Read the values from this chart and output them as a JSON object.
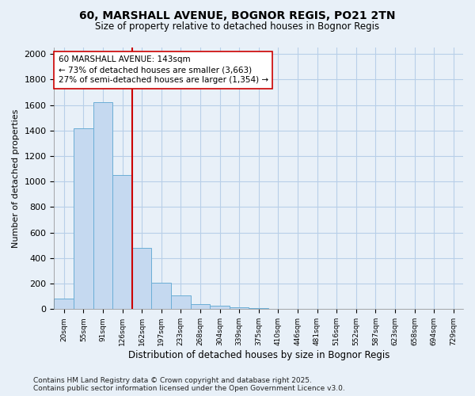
{
  "title_line1": "60, MARSHALL AVENUE, BOGNOR REGIS, PO21 2TN",
  "title_line2": "Size of property relative to detached houses in Bognor Regis",
  "xlabel": "Distribution of detached houses by size in Bognor Regis",
  "ylabel": "Number of detached properties",
  "categories": [
    "20sqm",
    "55sqm",
    "91sqm",
    "126sqm",
    "162sqm",
    "197sqm",
    "233sqm",
    "268sqm",
    "304sqm",
    "339sqm",
    "375sqm",
    "410sqm",
    "446sqm",
    "481sqm",
    "516sqm",
    "552sqm",
    "587sqm",
    "623sqm",
    "658sqm",
    "694sqm",
    "729sqm"
  ],
  "values": [
    80,
    1420,
    1620,
    1050,
    480,
    205,
    110,
    40,
    25,
    15,
    10,
    0,
    0,
    0,
    0,
    0,
    0,
    0,
    0,
    0,
    0
  ],
  "bar_color": "#c5d9f0",
  "bar_edge_color": "#6baed6",
  "grid_color": "#b8cfe8",
  "background_color": "#e8f0f8",
  "vline_x": 3.5,
  "vline_color": "#cc0000",
  "annotation_text": "60 MARSHALL AVENUE: 143sqm\n← 73% of detached houses are smaller (3,663)\n27% of semi-detached houses are larger (1,354) →",
  "annotation_box_color": "#ffffff",
  "annotation_box_edge": "#cc0000",
  "ylim": [
    0,
    2050
  ],
  "yticks": [
    0,
    200,
    400,
    600,
    800,
    1000,
    1200,
    1400,
    1600,
    1800,
    2000
  ],
  "footer_line1": "Contains HM Land Registry data © Crown copyright and database right 2025.",
  "footer_line2": "Contains public sector information licensed under the Open Government Licence v3.0."
}
